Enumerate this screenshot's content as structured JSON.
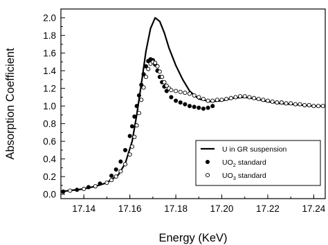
{
  "chart_data": {
    "type": "scatter",
    "xlabel": "Energy (KeV)",
    "ylabel": "Absorption Coefficient",
    "xlim": [
      17.13,
      17.245
    ],
    "ylim": [
      -0.05,
      2.1
    ],
    "xticks": [
      "17.14",
      "17.16",
      "17.18",
      "17.20",
      "17.22",
      "17.24"
    ],
    "yticks": [
      "0.0",
      "0.2",
      "0.4",
      "0.6",
      "0.8",
      "1.0",
      "1.2",
      "1.4",
      "1.6",
      "1.8",
      "2.0"
    ],
    "legend_position": "bottom-right",
    "series": [
      {
        "name": "U in GR suspension",
        "style": "line",
        "color": "#000000",
        "x": [
          17.13,
          17.135,
          17.14,
          17.145,
          17.15,
          17.155,
          17.158,
          17.161,
          17.163,
          17.165,
          17.167,
          17.169,
          17.171,
          17.173,
          17.175,
          17.177,
          17.18,
          17.183,
          17.186,
          17.19,
          17.195,
          17.2,
          17.205,
          17.21,
          17.215,
          17.22,
          17.225,
          17.23,
          17.235,
          17.24,
          17.245
        ],
        "y": [
          0.03,
          0.045,
          0.06,
          0.09,
          0.13,
          0.22,
          0.35,
          0.6,
          0.9,
          1.25,
          1.62,
          1.88,
          2.0,
          1.96,
          1.83,
          1.66,
          1.46,
          1.3,
          1.17,
          1.08,
          1.05,
          1.06,
          1.09,
          1.1,
          1.08,
          1.05,
          1.03,
          1.02,
          1.01,
          1.0,
          1.0
        ]
      },
      {
        "name": "UO",
        "style": "filled-circle",
        "color": "#000000",
        "x": [
          17.131,
          17.137,
          17.142,
          17.147,
          17.152,
          17.154,
          17.156,
          17.158,
          17.16,
          17.161,
          17.162,
          17.163,
          17.164,
          17.165,
          17.166,
          17.167,
          17.168,
          17.169,
          17.17,
          17.171,
          17.172,
          17.173,
          17.174,
          17.175,
          17.176,
          17.178,
          17.18,
          17.182,
          17.184,
          17.186,
          17.188,
          17.19,
          17.192,
          17.194,
          17.196
        ],
        "y": [
          0.03,
          0.05,
          0.08,
          0.12,
          0.21,
          0.28,
          0.37,
          0.5,
          0.66,
          0.77,
          0.88,
          1.0,
          1.12,
          1.24,
          1.36,
          1.45,
          1.51,
          1.53,
          1.52,
          1.47,
          1.4,
          1.33,
          1.27,
          1.22,
          1.17,
          1.1,
          1.06,
          1.04,
          1.02,
          1.0,
          0.99,
          0.98,
          0.97,
          0.98,
          1.0
        ]
      },
      {
        "name": "UO",
        "style": "open-circle",
        "color": "#000000",
        "x": [
          17.134,
          17.14,
          17.145,
          17.15,
          17.152,
          17.154,
          17.156,
          17.158,
          17.16,
          17.161,
          17.162,
          17.163,
          17.164,
          17.165,
          17.166,
          17.167,
          17.168,
          17.169,
          17.17,
          17.171,
          17.172,
          17.173,
          17.174,
          17.175,
          17.176,
          17.177,
          17.178,
          17.18,
          17.182,
          17.184,
          17.186,
          17.188,
          17.19,
          17.192,
          17.194,
          17.196,
          17.198,
          17.2,
          17.202,
          17.204,
          17.206,
          17.208,
          17.21,
          17.212,
          17.214,
          17.216,
          17.218,
          17.22,
          17.222,
          17.224,
          17.226,
          17.228,
          17.23,
          17.232,
          17.234,
          17.236,
          17.238,
          17.24,
          17.242,
          17.244
        ],
        "y": [
          0.04,
          0.06,
          0.09,
          0.13,
          0.16,
          0.2,
          0.26,
          0.34,
          0.45,
          0.54,
          0.65,
          0.78,
          0.92,
          1.07,
          1.21,
          1.33,
          1.42,
          1.48,
          1.5,
          1.49,
          1.45,
          1.39,
          1.33,
          1.27,
          1.23,
          1.2,
          1.18,
          1.17,
          1.16,
          1.15,
          1.14,
          1.12,
          1.1,
          1.08,
          1.06,
          1.06,
          1.07,
          1.07,
          1.08,
          1.09,
          1.1,
          1.11,
          1.11,
          1.1,
          1.09,
          1.08,
          1.07,
          1.06,
          1.05,
          1.04,
          1.04,
          1.03,
          1.03,
          1.02,
          1.02,
          1.01,
          1.01,
          1.0,
          1.0,
          1.0
        ]
      }
    ],
    "legend": [
      {
        "label": "U in GR suspension",
        "marker": "line"
      },
      {
        "label": "UO",
        "sub": "2",
        "label_suffix": " standard",
        "marker": "filled-circle"
      },
      {
        "label": "UO",
        "sub": "3",
        "label_suffix": " standard",
        "marker": "open-circle"
      }
    ]
  }
}
